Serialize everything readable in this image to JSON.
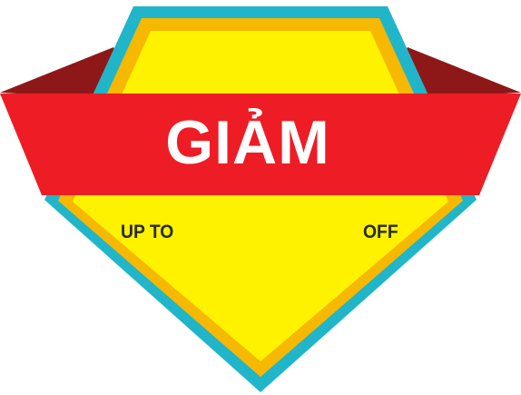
{
  "badge": {
    "title": "GIẢM",
    "left_text": "UP TO",
    "right_text": "OFF"
  },
  "colors": {
    "outer_border": "#21b5c9",
    "orange_ring": "#f6b800",
    "yellow_fill": "#fff200",
    "ribbon_red": "#ee1c25",
    "ribbon_dark": "#8e1818",
    "title_text": "#ffffff",
    "small_text": "#2a2a1a"
  }
}
